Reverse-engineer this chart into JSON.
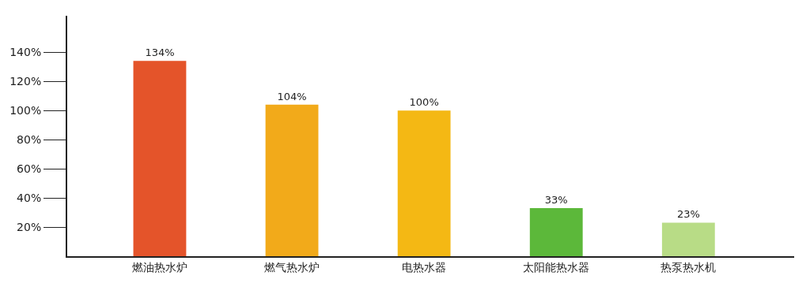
{
  "chart_data": {
    "type": "bar",
    "categories": [
      "燃油热水炉",
      "燃气热水炉",
      "电热水器",
      "太阳能热水器",
      "热泵热水机"
    ],
    "values": [
      134,
      104,
      100,
      33,
      23
    ],
    "value_labels": [
      "134%",
      "104%",
      "100%",
      "33%",
      "23%"
    ],
    "colors": [
      "#e4542a",
      "#f2aa1a",
      "#f4b814",
      "#5cb83a",
      "#b8dc86"
    ],
    "ylim": [
      0,
      165
    ],
    "yticks": [
      {
        "value": 20,
        "label": "20%"
      },
      {
        "value": 40,
        "label": "40%"
      },
      {
        "value": 60,
        "label": "60%"
      },
      {
        "value": 80,
        "label": "80%"
      },
      {
        "value": 100,
        "label": "100%"
      },
      {
        "value": 120,
        "label": "120%"
      },
      {
        "value": 140,
        "label": "140%"
      }
    ]
  }
}
